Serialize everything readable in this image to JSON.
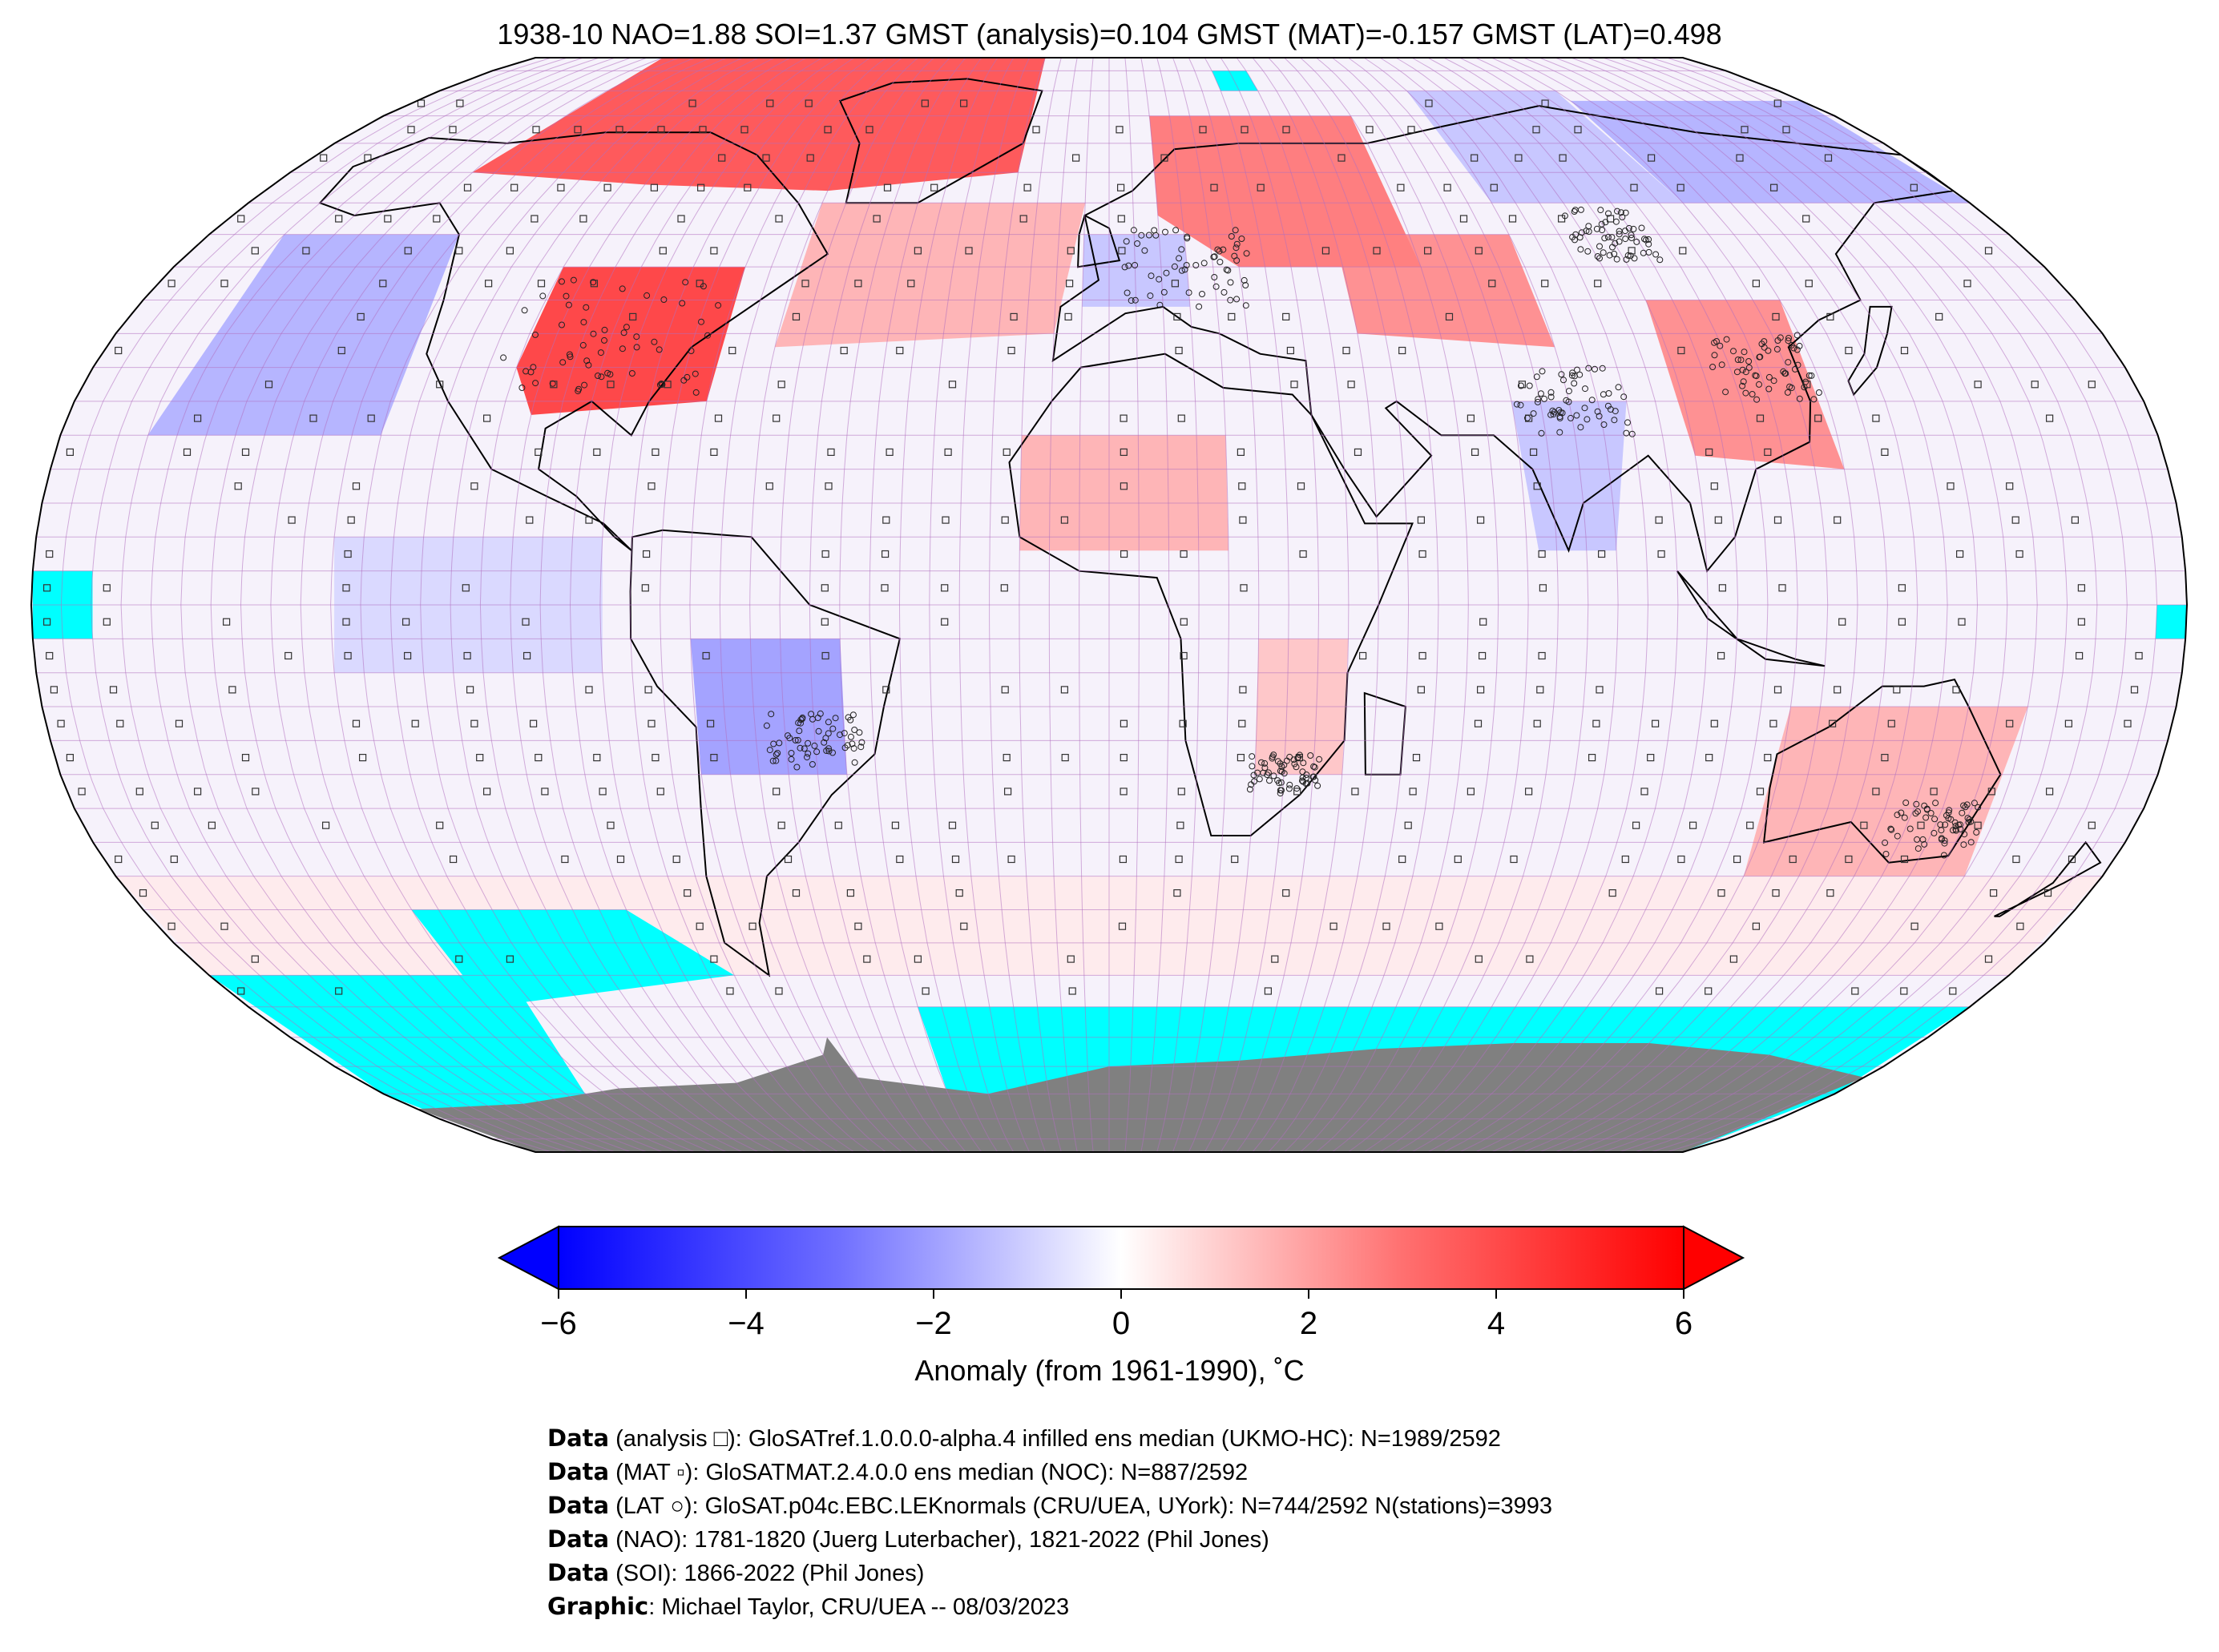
{
  "title": "1938-10 NAO=1.88 SOI=1.37 GMST (analysis)=0.104 GMST (MAT)=-0.157 GMST (LAT)=0.498",
  "colors": {
    "warm": "#ff0000",
    "cold": "#0000ff",
    "neutral": "#ffffff",
    "missing_data": "#00ffff",
    "antarctica_land": "#808080",
    "grid_lines": "#b070c0",
    "coastline": "#000000"
  },
  "map": {
    "projection": "Robinson",
    "grid_cell_size_degrees": 5,
    "symbols": {
      "analysis": "small square",
      "mat": "small filled square",
      "lat": "small circle"
    },
    "anomaly_regions": [
      {
        "region": "Arctic / northern Canada & Greenland",
        "anomaly": 4.5
      },
      {
        "region": "Central & eastern United States",
        "anomaly": 5.0
      },
      {
        "region": "North Atlantic",
        "anomaly": 2.0
      },
      {
        "region": "Scandinavia / western Russia",
        "anomaly": 3.5
      },
      {
        "region": "Central Europe",
        "anomaly": -1.5
      },
      {
        "region": "Central Siberia",
        "anomaly": -1.5
      },
      {
        "region": "Eastern Siberia",
        "anomaly": -2.0
      },
      {
        "region": "Central Asia / Kazakhstan",
        "anomaly": 3.0
      },
      {
        "region": "Eastern China",
        "anomaly": 3.0
      },
      {
        "region": "Eastern North Pacific",
        "anomaly": -2.0
      },
      {
        "region": "Sahara / West Africa",
        "anomaly": 2.0
      },
      {
        "region": "Indian subcontinent",
        "anomaly": -1.5
      },
      {
        "region": "Tropical eastern Pacific",
        "anomaly": -1.0
      },
      {
        "region": "Central South America",
        "anomaly": -2.5
      },
      {
        "region": "South-eastern Africa",
        "anomaly": 1.5
      },
      {
        "region": "Australia",
        "anomaly": 2.0
      },
      {
        "region": "Southern Ocean",
        "anomaly": 0.5
      }
    ]
  },
  "colorbar": {
    "min": -6,
    "max": 6,
    "ticks": [
      "−6",
      "−4",
      "−2",
      "0",
      "2",
      "4",
      "6"
    ],
    "tick_values": [
      -6,
      -4,
      -2,
      0,
      2,
      4,
      6
    ],
    "extend": "both",
    "label": "Anomaly (from 1961-1990), ˚C"
  },
  "credits": [
    {
      "bold": "Data",
      "text": " (analysis □): GloSATref.1.0.0.0-alpha.4 infilled ens median (UKMO-HC): N=1989/2592"
    },
    {
      "bold": "Data",
      "text": " (MAT ▫): GloSATMAT.2.4.0.0 ens median (NOC): N=887/2592"
    },
    {
      "bold": "Data",
      "text": " (LAT ○): GloSAT.p04c.EBC.LEKnormals (CRU/UEA, UYork): N=744/2592 N(stations)=3993"
    },
    {
      "bold": "Data",
      "text": " (NAO): 1781-1820 (Juerg Luterbacher), 1821-2022 (Phil Jones)"
    },
    {
      "bold": "Data",
      "text": " (SOI): 1866-2022 (Phil Jones)"
    },
    {
      "bold": "Graphic",
      "text": ": Michael Taylor, CRU/UEA -- 08/03/2023"
    }
  ]
}
